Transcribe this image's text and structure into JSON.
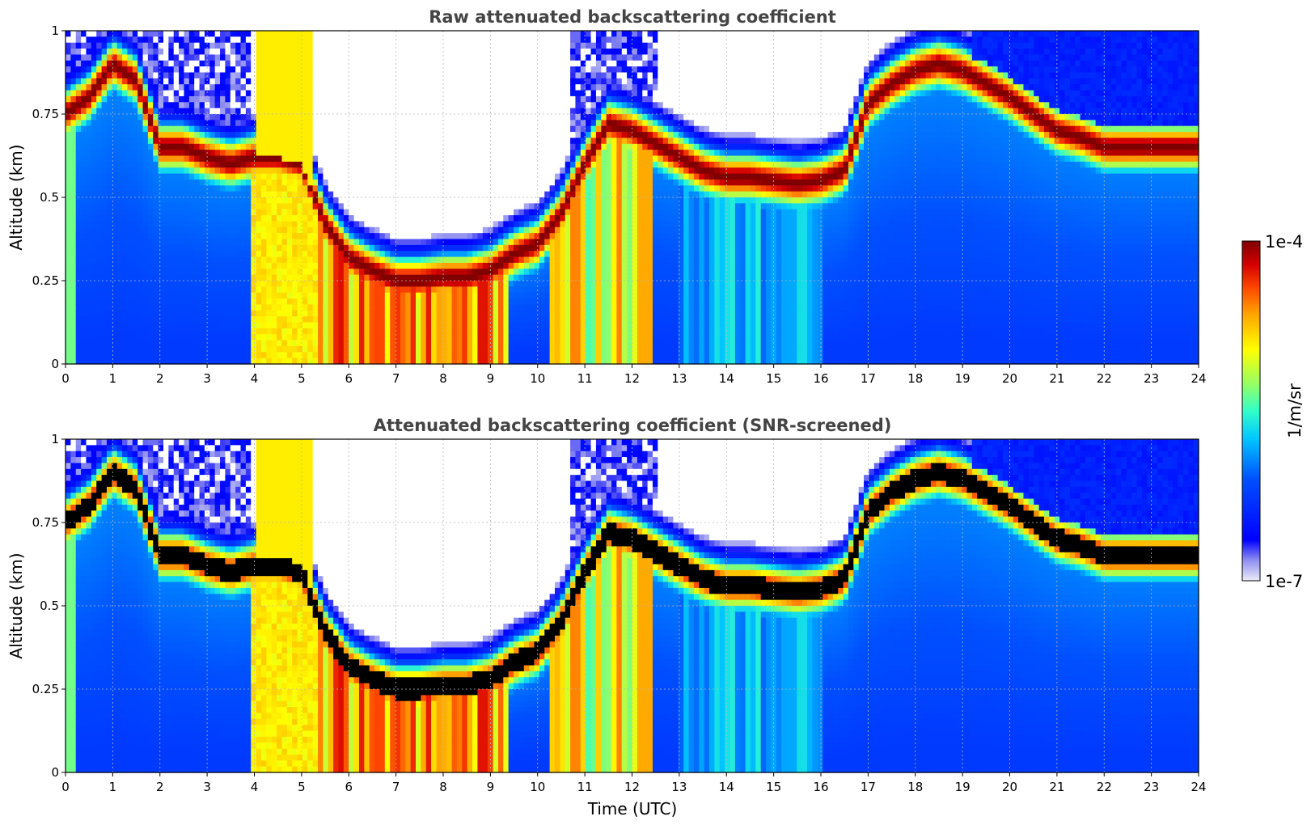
{
  "chart_data": [
    {
      "type": "heatmap",
      "title": "Raw attenuated backscattering coefficient",
      "xlabel": "",
      "ylabel": "Altitude (km)",
      "xlim": [
        0,
        24
      ],
      "ylim": [
        0,
        1
      ],
      "x_ticks": [
        "0",
        "1",
        "2",
        "3",
        "4",
        "5",
        "6",
        "7",
        "8",
        "9",
        "10",
        "11",
        "12",
        "13",
        "14",
        "15",
        "16",
        "17",
        "18",
        "19",
        "20",
        "21",
        "22",
        "23",
        "24"
      ],
      "y_ticks": [
        "0",
        "0.25",
        "0.5",
        "0.75",
        "1"
      ],
      "grid": true,
      "colormap": "jet",
      "x_values_hours": [
        0,
        0.5,
        1,
        1.5,
        2,
        2.5,
        3,
        3.5,
        4,
        4.5,
        5,
        5.5,
        6,
        6.5,
        7,
        7.5,
        8,
        8.5,
        9,
        9.5,
        10,
        10.5,
        11,
        11.5,
        12,
        12.5,
        13,
        13.5,
        14,
        14.5,
        15,
        15.5,
        16,
        16.5,
        17,
        17.5,
        18,
        18.5,
        19,
        19.5,
        20,
        20.5,
        21,
        21.5,
        22,
        22.5,
        23,
        23.5,
        24
      ],
      "peak_layer_altitude_km": [
        0.75,
        0.8,
        0.9,
        0.85,
        0.65,
        0.65,
        0.62,
        0.6,
        0.62,
        0.62,
        0.6,
        0.42,
        0.32,
        0.28,
        0.25,
        0.25,
        0.26,
        0.26,
        0.28,
        0.33,
        0.36,
        0.45,
        0.6,
        0.72,
        0.7,
        0.66,
        0.62,
        0.58,
        0.56,
        0.56,
        0.55,
        0.54,
        0.55,
        0.58,
        0.78,
        0.84,
        0.88,
        0.9,
        0.88,
        0.84,
        0.8,
        0.75,
        0.7,
        0.68,
        0.65,
        0.65,
        0.65,
        0.65,
        0.65
      ]
    },
    {
      "type": "heatmap",
      "title": "Attenuated backscattering coefficient (SNR-screened)",
      "xlabel": "Time (UTC)",
      "ylabel": "Altitude (km)",
      "xlim": [
        0,
        24
      ],
      "ylim": [
        0,
        1
      ],
      "x_ticks": [
        "0",
        "1",
        "2",
        "3",
        "4",
        "5",
        "6",
        "7",
        "8",
        "9",
        "10",
        "11",
        "12",
        "13",
        "14",
        "15",
        "16",
        "17",
        "18",
        "19",
        "20",
        "21",
        "22",
        "23",
        "24"
      ],
      "y_ticks": [
        "0",
        "0.25",
        "0.5",
        "0.75",
        "1"
      ],
      "grid": true,
      "colormap": "jet",
      "peak_color": "#000000"
    }
  ],
  "colorbar": {
    "label": "1/m/sr",
    "min_label": "1e-7",
    "max_label": "1e-4",
    "stops": [
      "#ecebf8",
      "#8f8ff0",
      "#0000ff",
      "#0050ff",
      "#00c8ff",
      "#32ffc8",
      "#96ff64",
      "#ffff00",
      "#ffaa00",
      "#ff4a00",
      "#d50000",
      "#7f0000"
    ]
  }
}
